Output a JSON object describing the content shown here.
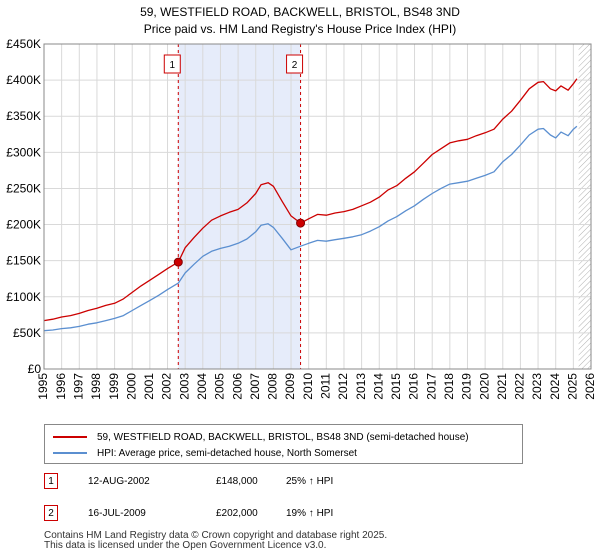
{
  "chart_data": {
    "type": "line",
    "title": "59, WESTFIELD ROAD, BACKWELL, BRISTOL, BS48 3ND",
    "subtitle": "Price paid vs. HM Land Registry's House Price Index (HPI)",
    "xlim": [
      1995,
      2026
    ],
    "ylim": [
      0,
      450000
    ],
    "x_ticks": [
      1995,
      1996,
      1997,
      1998,
      1999,
      2000,
      2001,
      2002,
      2003,
      2004,
      2005,
      2006,
      2007,
      2008,
      2009,
      2010,
      2011,
      2012,
      2013,
      2014,
      2015,
      2016,
      2017,
      2018,
      2019,
      2020,
      2021,
      2022,
      2023,
      2024,
      2025,
      2026
    ],
    "y_ticks": [
      0,
      50000,
      100000,
      150000,
      200000,
      250000,
      300000,
      350000,
      400000,
      450000
    ],
    "y_tick_labels": [
      "£0",
      "£50K",
      "£100K",
      "£150K",
      "£200K",
      "£250K",
      "£300K",
      "£350K",
      "£400K",
      "£450K"
    ],
    "grid": true,
    "shaded_range": [
      2002.61,
      2009.54
    ],
    "hatched_from": 2025.3,
    "series": [
      {
        "name": "59, WESTFIELD ROAD, BACKWELL, BRISTOL, BS48 3ND (semi-detached house)",
        "color": "#cc0000",
        "x": [
          1995,
          1995.5,
          1996,
          1996.5,
          1997,
          1997.5,
          1998,
          1998.5,
          1999,
          1999.5,
          2000,
          2000.5,
          2001,
          2001.5,
          2002,
          2002.61,
          2003,
          2003.5,
          2004,
          2004.5,
          2005,
          2005.5,
          2006,
          2006.5,
          2007,
          2007.3,
          2007.7,
          2008,
          2008.5,
          2009,
          2009.54,
          2010,
          2010.5,
          2011,
          2011.5,
          2012,
          2012.5,
          2013,
          2013.5,
          2014,
          2014.5,
          2015,
          2015.5,
          2016,
          2016.5,
          2017,
          2017.5,
          2018,
          2018.5,
          2019,
          2019.5,
          2020,
          2020.5,
          2021,
          2021.5,
          2022,
          2022.5,
          2023,
          2023.3,
          2023.7,
          2024,
          2024.3,
          2024.7,
          2025,
          2025.2
        ],
        "values": [
          67000,
          69000,
          72000,
          74000,
          77000,
          81000,
          84000,
          88000,
          91000,
          97000,
          106000,
          115000,
          123000,
          131000,
          139000,
          148000,
          168000,
          182000,
          195000,
          206000,
          212000,
          217000,
          221000,
          230000,
          243000,
          255000,
          258000,
          253000,
          232000,
          212000,
          202000,
          208000,
          214000,
          213000,
          216000,
          218000,
          221000,
          226000,
          231000,
          238000,
          248000,
          254000,
          264000,
          273000,
          285000,
          297000,
          305000,
          313000,
          316000,
          318000,
          323000,
          327000,
          332000,
          346000,
          357000,
          372000,
          388000,
          397000,
          398000,
          388000,
          385000,
          392000,
          386000,
          395000,
          402000
        ]
      },
      {
        "name": "HPI: Average price, semi-detached house, North Somerset",
        "color": "#5b8fd0",
        "x": [
          1995,
          1995.5,
          1996,
          1996.5,
          1997,
          1997.5,
          1998,
          1998.5,
          1999,
          1999.5,
          2000,
          2000.5,
          2001,
          2001.5,
          2002,
          2002.61,
          2003,
          2003.5,
          2004,
          2004.5,
          2005,
          2005.5,
          2006,
          2006.5,
          2007,
          2007.3,
          2007.7,
          2008,
          2008.5,
          2009,
          2009.54,
          2010,
          2010.5,
          2011,
          2011.5,
          2012,
          2012.5,
          2013,
          2013.5,
          2014,
          2014.5,
          2015,
          2015.5,
          2016,
          2016.5,
          2017,
          2017.5,
          2018,
          2018.5,
          2019,
          2019.5,
          2020,
          2020.5,
          2021,
          2021.5,
          2022,
          2022.5,
          2023,
          2023.3,
          2023.7,
          2024,
          2024.3,
          2024.7,
          2025,
          2025.2
        ],
        "values": [
          53000,
          54000,
          56000,
          57000,
          59000,
          62000,
          64000,
          67000,
          70000,
          74000,
          81000,
          88000,
          95000,
          102000,
          110000,
          119000,
          133000,
          145000,
          156000,
          163000,
          167000,
          170000,
          174000,
          180000,
          190000,
          199000,
          201000,
          196000,
          181000,
          165000,
          170000,
          174000,
          178000,
          177000,
          179000,
          181000,
          183000,
          186000,
          191000,
          197000,
          205000,
          211000,
          219000,
          226000,
          235000,
          243000,
          250000,
          256000,
          258000,
          260000,
          264000,
          268000,
          273000,
          287000,
          297000,
          310000,
          324000,
          332000,
          333000,
          324000,
          320000,
          328000,
          323000,
          332000,
          336000
        ]
      }
    ],
    "annotations": [
      {
        "label": "1",
        "x": 2002.61,
        "value": 148000
      },
      {
        "label": "2",
        "x": 2009.54,
        "value": 202000
      }
    ]
  },
  "legend": {
    "series_red": "59, WESTFIELD ROAD, BACKWELL, BRISTOL, BS48 3ND (semi-detached house)",
    "series_blue": "HPI: Average price, semi-detached house, North Somerset"
  },
  "transactions": [
    {
      "num": "1",
      "date": "12-AUG-2002",
      "price": "£148,000",
      "hpi": "25% ↑ HPI"
    },
    {
      "num": "2",
      "date": "16-JUL-2009",
      "price": "£202,000",
      "hpi": "19% ↑ HPI"
    }
  ],
  "footer": {
    "line1": "Contains HM Land Registry data © Crown copyright and database right 2025.",
    "line2": "This data is licensed under the Open Government Licence v3.0."
  }
}
